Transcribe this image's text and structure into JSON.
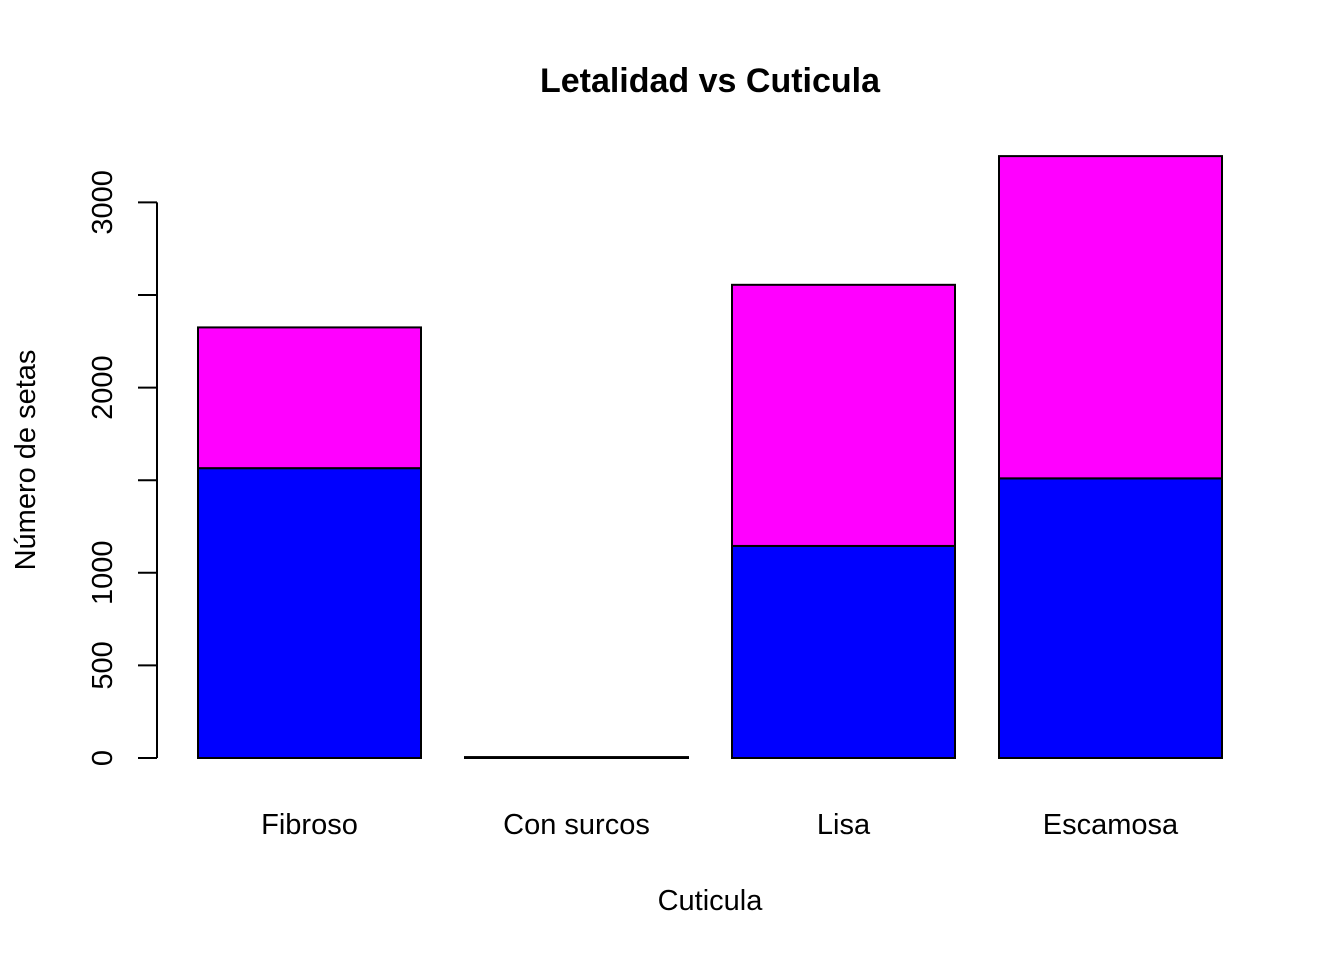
{
  "chart_data": {
    "type": "bar",
    "stacked": true,
    "title": "Letalidad vs Cuticula",
    "xlabel": "Cuticula",
    "ylabel": "Número de setas",
    "categories": [
      "Fibroso",
      "Con surcos",
      "Lisa",
      "Escamosa"
    ],
    "series": [
      {
        "values": [
          1565,
          0,
          1145,
          1510
        ],
        "color": "#0000FF"
      },
      {
        "values": [
          760,
          5,
          1410,
          1740
        ],
        "color": "#FF00FF"
      }
    ],
    "yticks": [
      0,
      500,
      1000,
      1500,
      2000,
      2500,
      3000
    ],
    "ytick_labels": [
      "0",
      "500",
      "1000",
      "",
      "2000",
      "",
      "3000"
    ],
    "ylim": [
      0,
      3300
    ],
    "grid": false,
    "legend": "none"
  }
}
